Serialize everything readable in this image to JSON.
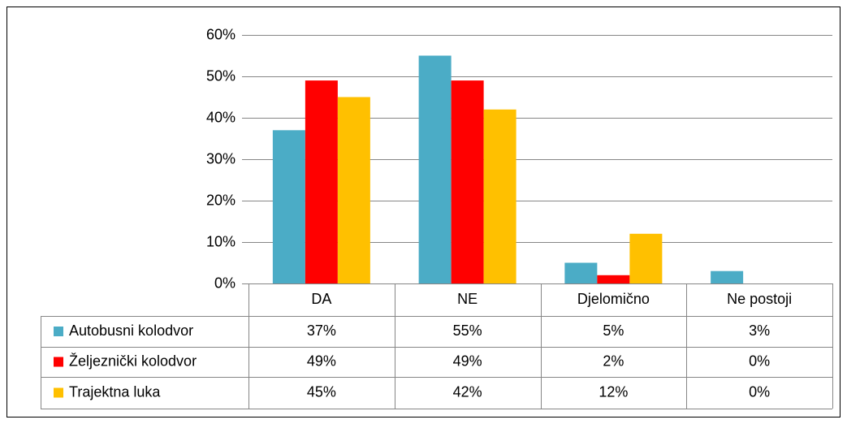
{
  "chart_data": {
    "type": "bar",
    "categories": [
      "DA",
      "NE",
      "Djelomično",
      "Ne postoji"
    ],
    "series": [
      {
        "name": "Autobusni kolodvor",
        "color": "#4bacc6",
        "values": [
          37,
          55,
          5,
          3
        ],
        "value_labels": [
          "37%",
          "55%",
          "5%",
          "3%"
        ]
      },
      {
        "name": "Željeznički kolodvor",
        "color": "#ff0000",
        "values": [
          49,
          49,
          2,
          0
        ],
        "value_labels": [
          "49%",
          "49%",
          "2%",
          "0%"
        ]
      },
      {
        "name": "Trajektna luka",
        "color": "#ffc000",
        "values": [
          45,
          42,
          12,
          0
        ],
        "value_labels": [
          "45%",
          "42%",
          "12%",
          "0%"
        ]
      }
    ],
    "ylim": [
      0,
      60
    ],
    "yticks": [
      {
        "value": 0,
        "label": "0%"
      },
      {
        "value": 10,
        "label": "10%"
      },
      {
        "value": 20,
        "label": "20%"
      },
      {
        "value": 30,
        "label": "30%"
      },
      {
        "value": 40,
        "label": "40%"
      },
      {
        "value": 50,
        "label": "50%"
      },
      {
        "value": 60,
        "label": "60%"
      }
    ],
    "grid": true
  }
}
